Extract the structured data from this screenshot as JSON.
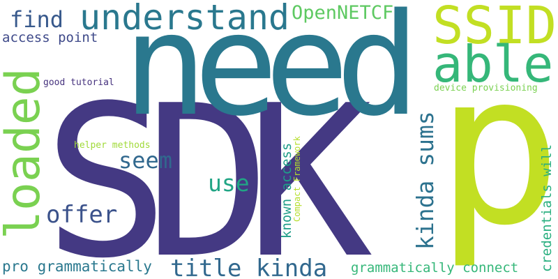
{
  "word_cloud": {
    "background": "#ffffff",
    "words": [
      {
        "text": "SDK",
        "color": "#443983"
      },
      {
        "text": "p",
        "color": "#c2df23"
      },
      {
        "text": "need",
        "color": "#2a788e"
      },
      {
        "text": "loaded",
        "color": "#7ad151"
      },
      {
        "text": "SSID",
        "color": "#c2df23"
      },
      {
        "text": "able",
        "color": "#35b779"
      },
      {
        "text": "understand",
        "color": "#2a788e"
      },
      {
        "text": "kinda sums",
        "color": "#2c728e"
      },
      {
        "text": "title kinda",
        "color": "#31688e"
      },
      {
        "text": "OpenNETCF",
        "color": "#5ec962"
      },
      {
        "text": "offer",
        "color": "#3b528b"
      },
      {
        "text": "seem",
        "color": "#31688e"
      },
      {
        "text": "use",
        "color": "#21a585"
      },
      {
        "text": "find",
        "color": "#38598c"
      },
      {
        "text": "pro grammatically",
        "color": "#2a788e"
      },
      {
        "text": "grammatically connect",
        "color": "#35b779"
      },
      {
        "text": "known access",
        "color": "#1f9e89"
      },
      {
        "text": "credentials will",
        "color": "#29af7f"
      },
      {
        "text": "access point",
        "color": "#3e4989"
      },
      {
        "text": "device provisioning",
        "color": "#7ad151"
      },
      {
        "text": "good tutorial",
        "color": "#46327e"
      },
      {
        "text": "helper methods",
        "color": "#a0da39"
      },
      {
        "text": "Compact Framework",
        "color": "#b5de2b"
      }
    ]
  }
}
